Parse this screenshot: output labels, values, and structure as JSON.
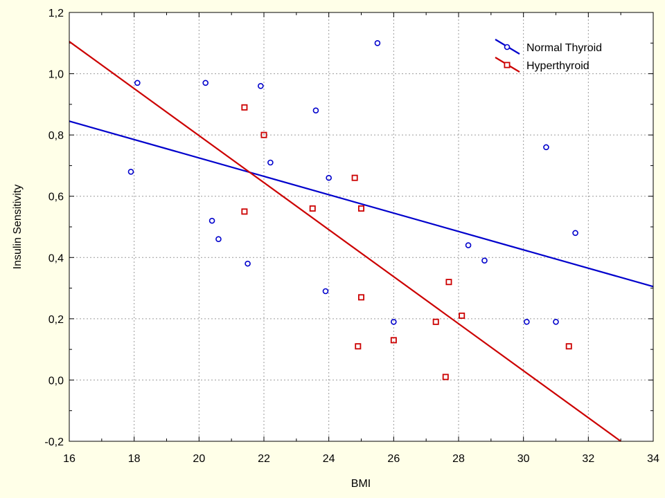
{
  "chart_data": {
    "type": "scatter",
    "title": "",
    "xlabel": "BMI",
    "ylabel": "Insulin Sensitivity",
    "xlim": [
      16,
      34
    ],
    "ylim": [
      -0.2,
      1.2
    ],
    "x_ticks": [
      16,
      18,
      20,
      22,
      24,
      26,
      28,
      30,
      32,
      34
    ],
    "y_ticks": [
      -0.2,
      0.0,
      0.2,
      0.4,
      0.6,
      0.8,
      1.0,
      1.2
    ],
    "x_tick_labels": [
      "16",
      "18",
      "20",
      "22",
      "24",
      "26",
      "28",
      "30",
      "32",
      "34"
    ],
    "y_tick_labels": [
      "-0,2",
      "0,0",
      "0,2",
      "0,4",
      "0,6",
      "0,8",
      "1,0",
      "1,2"
    ],
    "grid": true,
    "legend_position": "top-right",
    "series": [
      {
        "name": "Normal Thyroid",
        "color": "#0000cc",
        "marker": "circle",
        "points": [
          [
            17.9,
            0.68
          ],
          [
            18.1,
            0.97
          ],
          [
            20.2,
            0.97
          ],
          [
            20.4,
            0.52
          ],
          [
            20.6,
            0.46
          ],
          [
            21.5,
            0.38
          ],
          [
            21.9,
            0.96
          ],
          [
            22.2,
            0.71
          ],
          [
            23.6,
            0.88
          ],
          [
            23.9,
            0.29
          ],
          [
            24.0,
            0.66
          ],
          [
            25.5,
            1.1
          ],
          [
            26.0,
            0.19
          ],
          [
            28.3,
            0.44
          ],
          [
            28.8,
            0.39
          ],
          [
            30.1,
            0.19
          ],
          [
            30.7,
            0.76
          ],
          [
            31.0,
            0.19
          ],
          [
            31.6,
            0.48
          ]
        ],
        "fit_line": [
          [
            16,
            0.845
          ],
          [
            34,
            0.305
          ]
        ]
      },
      {
        "name": "Hyperthyroid",
        "color": "#cc0000",
        "marker": "square",
        "points": [
          [
            21.4,
            0.89
          ],
          [
            21.4,
            0.55
          ],
          [
            22.0,
            0.8
          ],
          [
            23.5,
            0.56
          ],
          [
            24.8,
            0.66
          ],
          [
            24.9,
            0.11
          ],
          [
            25.0,
            0.56
          ],
          [
            25.0,
            0.27
          ],
          [
            26.0,
            0.13
          ],
          [
            27.3,
            0.19
          ],
          [
            27.6,
            0.01
          ],
          [
            27.7,
            0.32
          ],
          [
            28.1,
            0.21
          ],
          [
            31.4,
            0.11
          ]
        ],
        "fit_line": [
          [
            16,
            1.105
          ],
          [
            33,
            -0.2
          ]
        ]
      }
    ]
  }
}
